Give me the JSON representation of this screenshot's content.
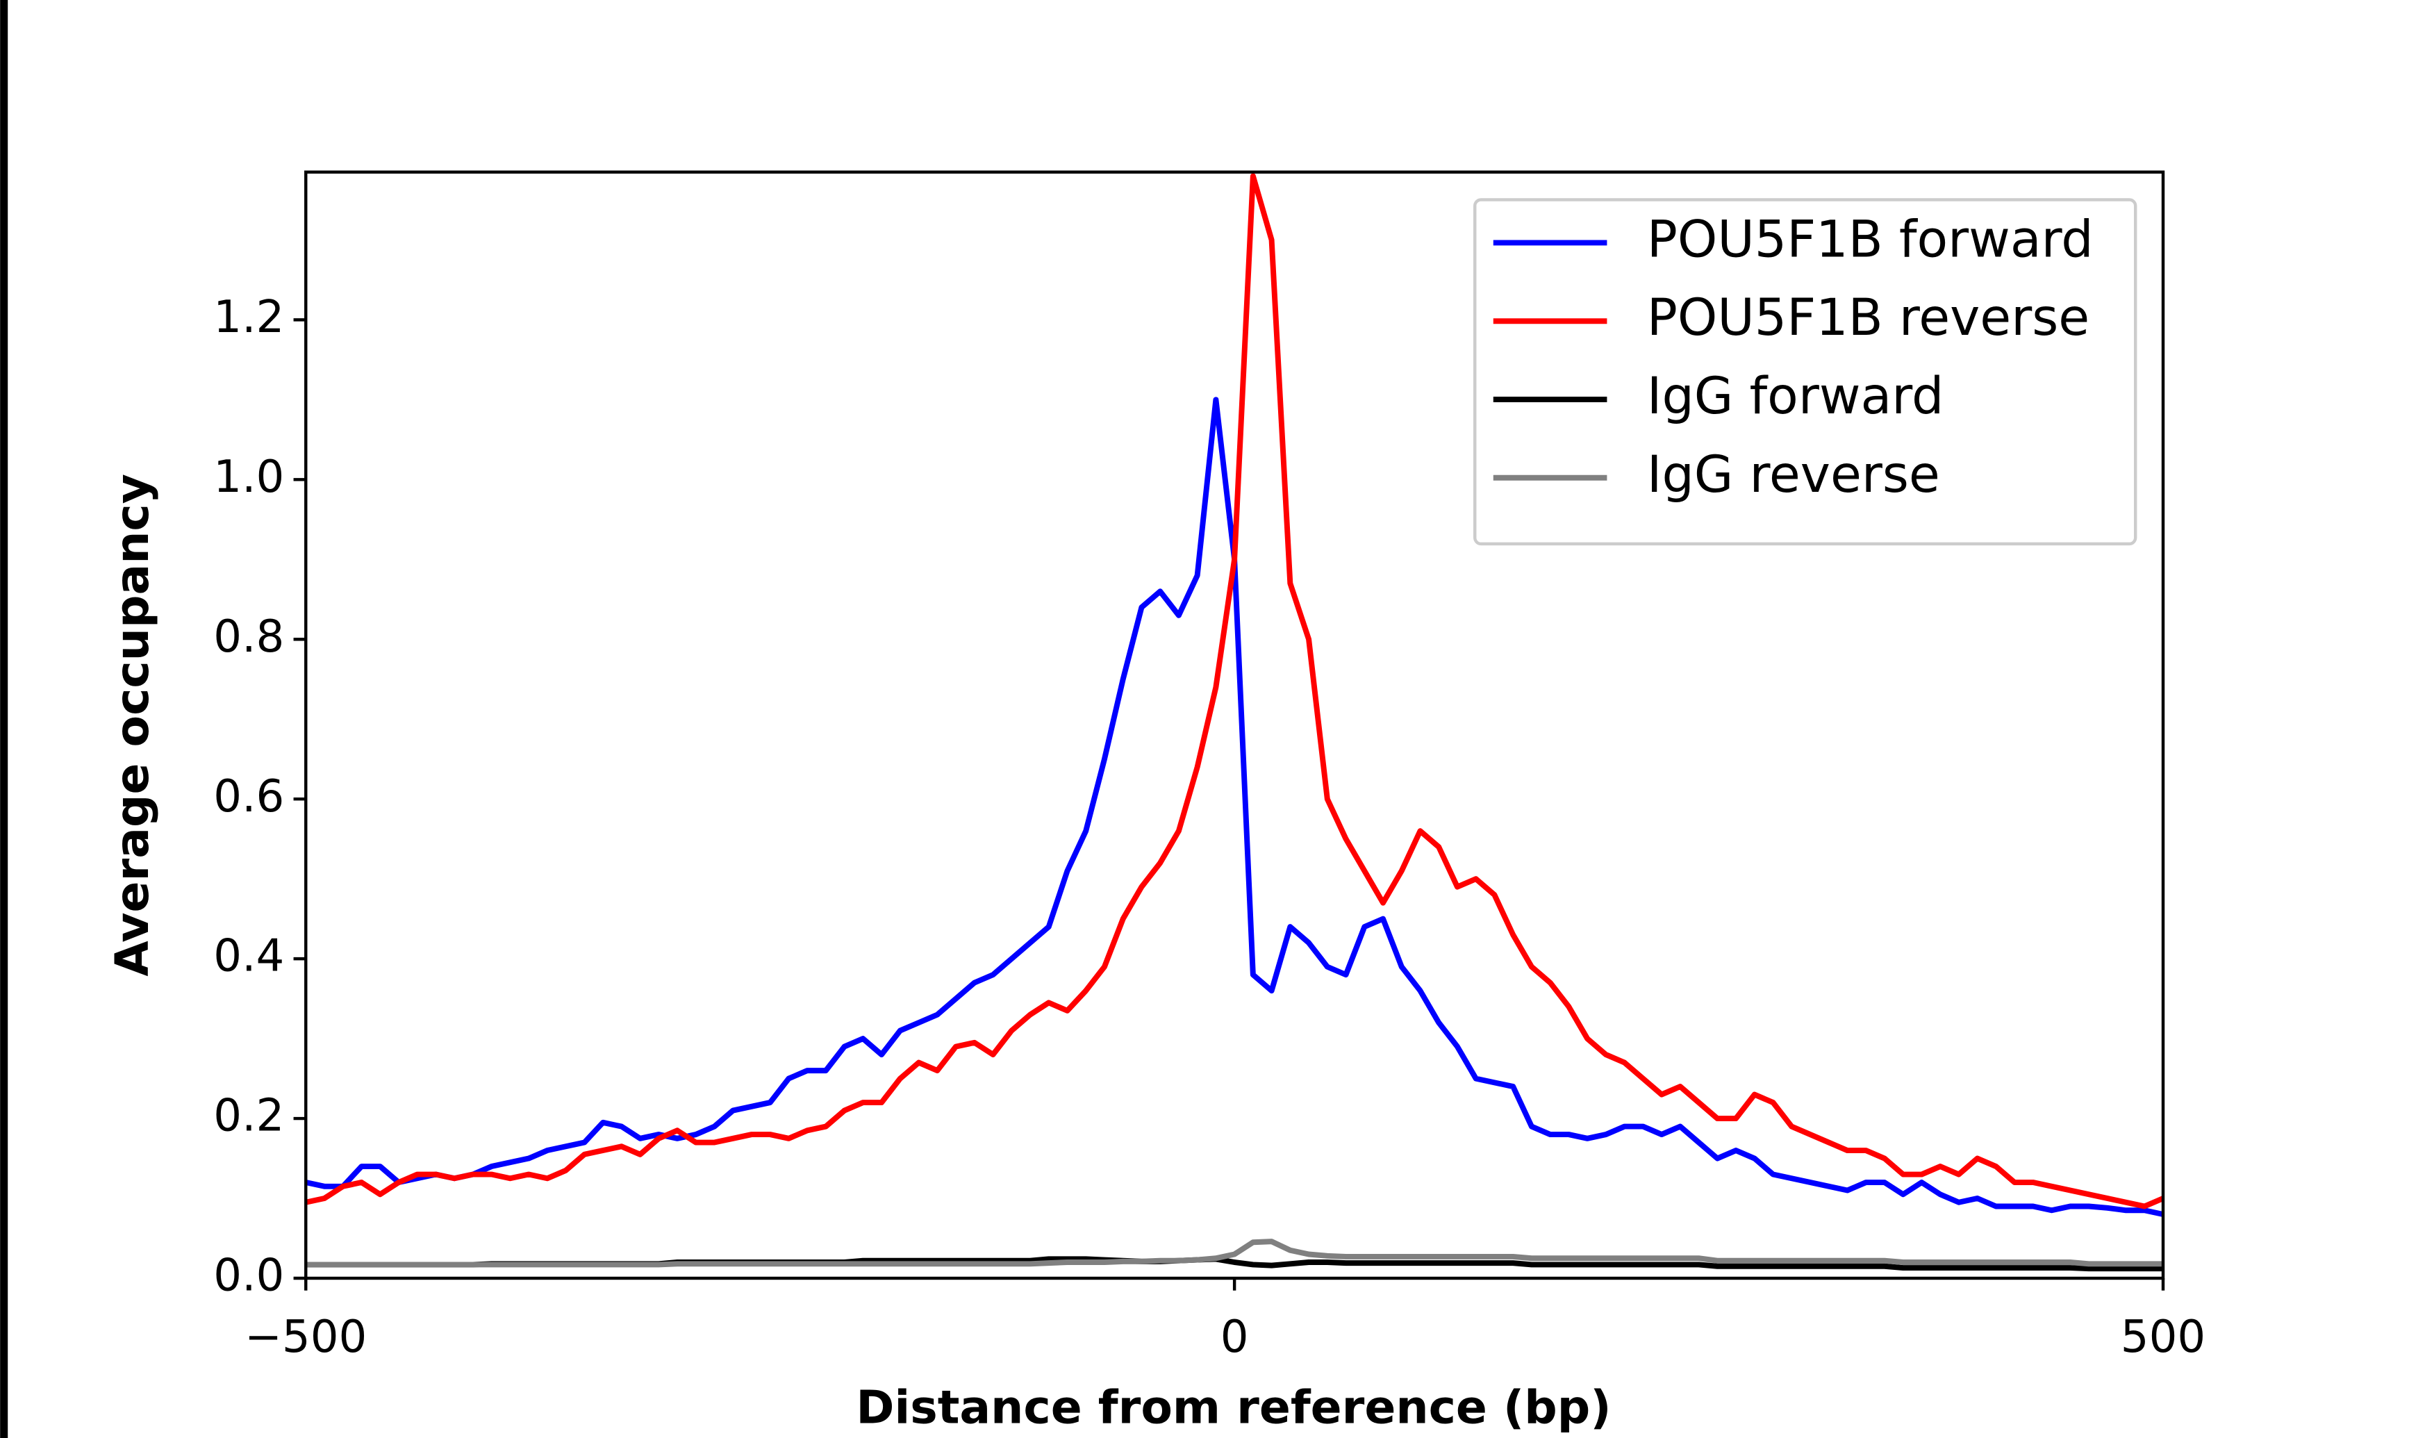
{
  "chart_data": {
    "type": "line",
    "xlabel": "Distance from reference (bp)",
    "ylabel": "Average occupancy",
    "xlim": [
      -500,
      500
    ],
    "ylim": [
      0,
      1.385
    ],
    "xticks": [
      {
        "value": -500,
        "label": "−500"
      },
      0,
      500
    ],
    "yticks": [
      {
        "value": 0,
        "label": "0.0"
      },
      0.2,
      0.4,
      0.6,
      0.8,
      {
        "value": 1,
        "label": "1.0"
      },
      1.2
    ],
    "legend": "upper right",
    "x": [
      -500,
      -490,
      -480,
      -470,
      -460,
      -450,
      -440,
      -430,
      -420,
      -410,
      -400,
      -390,
      -380,
      -370,
      -360,
      -350,
      -340,
      -330,
      -320,
      -310,
      -300,
      -290,
      -280,
      -270,
      -260,
      -250,
      -240,
      -230,
      -220,
      -210,
      -200,
      -190,
      -180,
      -170,
      -160,
      -150,
      -140,
      -130,
      -120,
      -110,
      -100,
      -90,
      -80,
      -70,
      -60,
      -50,
      -40,
      -30,
      -20,
      -10,
      0,
      10,
      20,
      30,
      40,
      50,
      60,
      70,
      80,
      90,
      100,
      110,
      120,
      130,
      140,
      150,
      160,
      170,
      180,
      190,
      200,
      210,
      220,
      230,
      240,
      250,
      260,
      270,
      280,
      290,
      300,
      310,
      320,
      330,
      340,
      350,
      360,
      370,
      380,
      390,
      400,
      410,
      420,
      430,
      440,
      450,
      460,
      470,
      480,
      490,
      500
    ],
    "series": [
      {
        "name": "POU5F1B forward",
        "color": "#0000ff",
        "values": [
          0.12,
          0.115,
          0.115,
          0.14,
          0.14,
          0.12,
          0.125,
          0.13,
          0.125,
          0.13,
          0.14,
          0.145,
          0.15,
          0.16,
          0.165,
          0.17,
          0.195,
          0.19,
          0.175,
          0.18,
          0.175,
          0.18,
          0.19,
          0.21,
          0.215,
          0.22,
          0.25,
          0.26,
          0.26,
          0.29,
          0.3,
          0.28,
          0.31,
          0.32,
          0.33,
          0.35,
          0.37,
          0.38,
          0.4,
          0.42,
          0.44,
          0.51,
          0.56,
          0.65,
          0.75,
          0.84,
          0.86,
          0.83,
          0.88,
          1.1,
          0.9,
          0.38,
          0.36,
          0.44,
          0.42,
          0.39,
          0.38,
          0.44,
          0.45,
          0.39,
          0.36,
          0.32,
          0.29,
          0.25,
          0.245,
          0.24,
          0.19,
          0.18,
          0.18,
          0.175,
          0.18,
          0.19,
          0.19,
          0.18,
          0.19,
          0.17,
          0.15,
          0.16,
          0.15,
          0.13,
          0.125,
          0.12,
          0.115,
          0.11,
          0.12,
          0.12,
          0.105,
          0.12,
          0.105,
          0.095,
          0.1,
          0.09,
          0.09,
          0.09,
          0.085,
          0.09,
          0.09,
          0.088,
          0.085,
          0.085,
          0.08
        ]
      },
      {
        "name": "POU5F1B reverse",
        "color": "#ff0000",
        "values": [
          0.095,
          0.1,
          0.115,
          0.12,
          0.105,
          0.12,
          0.13,
          0.13,
          0.125,
          0.13,
          0.13,
          0.125,
          0.13,
          0.125,
          0.135,
          0.155,
          0.16,
          0.165,
          0.155,
          0.175,
          0.185,
          0.17,
          0.17,
          0.175,
          0.18,
          0.18,
          0.175,
          0.185,
          0.19,
          0.21,
          0.22,
          0.22,
          0.25,
          0.27,
          0.26,
          0.29,
          0.295,
          0.28,
          0.31,
          0.33,
          0.345,
          0.335,
          0.36,
          0.39,
          0.45,
          0.49,
          0.52,
          0.56,
          0.64,
          0.74,
          0.9,
          1.38,
          1.3,
          0.87,
          0.8,
          0.6,
          0.55,
          0.51,
          0.47,
          0.51,
          0.56,
          0.54,
          0.49,
          0.5,
          0.48,
          0.43,
          0.39,
          0.37,
          0.34,
          0.3,
          0.28,
          0.27,
          0.25,
          0.23,
          0.24,
          0.22,
          0.2,
          0.2,
          0.23,
          0.22,
          0.19,
          0.18,
          0.17,
          0.16,
          0.16,
          0.15,
          0.13,
          0.13,
          0.14,
          0.13,
          0.15,
          0.14,
          0.12,
          0.12,
          0.115,
          0.11,
          0.105,
          0.1,
          0.095,
          0.09,
          0.1
        ]
      },
      {
        "name": "IgG forward",
        "color": "#000000",
        "values": [
          0.017,
          0.017,
          0.017,
          0.017,
          0.017,
          0.017,
          0.017,
          0.017,
          0.017,
          0.017,
          0.018,
          0.018,
          0.018,
          0.018,
          0.018,
          0.018,
          0.018,
          0.018,
          0.018,
          0.018,
          0.02,
          0.02,
          0.02,
          0.02,
          0.02,
          0.02,
          0.02,
          0.02,
          0.02,
          0.02,
          0.022,
          0.022,
          0.022,
          0.022,
          0.022,
          0.022,
          0.022,
          0.022,
          0.022,
          0.022,
          0.024,
          0.024,
          0.024,
          0.023,
          0.022,
          0.021,
          0.021,
          0.022,
          0.023,
          0.024,
          0.02,
          0.017,
          0.016,
          0.018,
          0.02,
          0.02,
          0.019,
          0.019,
          0.019,
          0.019,
          0.019,
          0.019,
          0.019,
          0.019,
          0.019,
          0.019,
          0.017,
          0.017,
          0.017,
          0.017,
          0.017,
          0.017,
          0.017,
          0.017,
          0.017,
          0.017,
          0.015,
          0.015,
          0.015,
          0.015,
          0.015,
          0.015,
          0.015,
          0.015,
          0.015,
          0.015,
          0.013,
          0.013,
          0.013,
          0.013,
          0.013,
          0.013,
          0.013,
          0.013,
          0.013,
          0.013,
          0.012,
          0.012,
          0.012,
          0.012,
          0.012
        ]
      },
      {
        "name": "IgG reverse",
        "color": "#808080",
        "values": [
          0.017,
          0.017,
          0.017,
          0.017,
          0.017,
          0.017,
          0.017,
          0.017,
          0.017,
          0.017,
          0.017,
          0.017,
          0.017,
          0.017,
          0.017,
          0.017,
          0.017,
          0.017,
          0.017,
          0.017,
          0.018,
          0.018,
          0.018,
          0.018,
          0.018,
          0.018,
          0.018,
          0.018,
          0.018,
          0.018,
          0.018,
          0.018,
          0.018,
          0.018,
          0.018,
          0.018,
          0.018,
          0.018,
          0.018,
          0.018,
          0.019,
          0.02,
          0.02,
          0.02,
          0.021,
          0.021,
          0.022,
          0.022,
          0.023,
          0.025,
          0.03,
          0.045,
          0.046,
          0.035,
          0.03,
          0.028,
          0.027,
          0.027,
          0.027,
          0.027,
          0.027,
          0.027,
          0.027,
          0.027,
          0.027,
          0.027,
          0.025,
          0.025,
          0.025,
          0.025,
          0.025,
          0.025,
          0.025,
          0.025,
          0.025,
          0.025,
          0.022,
          0.022,
          0.022,
          0.022,
          0.022,
          0.022,
          0.022,
          0.022,
          0.022,
          0.022,
          0.02,
          0.02,
          0.02,
          0.02,
          0.02,
          0.02,
          0.02,
          0.02,
          0.02,
          0.02,
          0.018,
          0.018,
          0.018,
          0.018,
          0.018
        ]
      }
    ]
  }
}
